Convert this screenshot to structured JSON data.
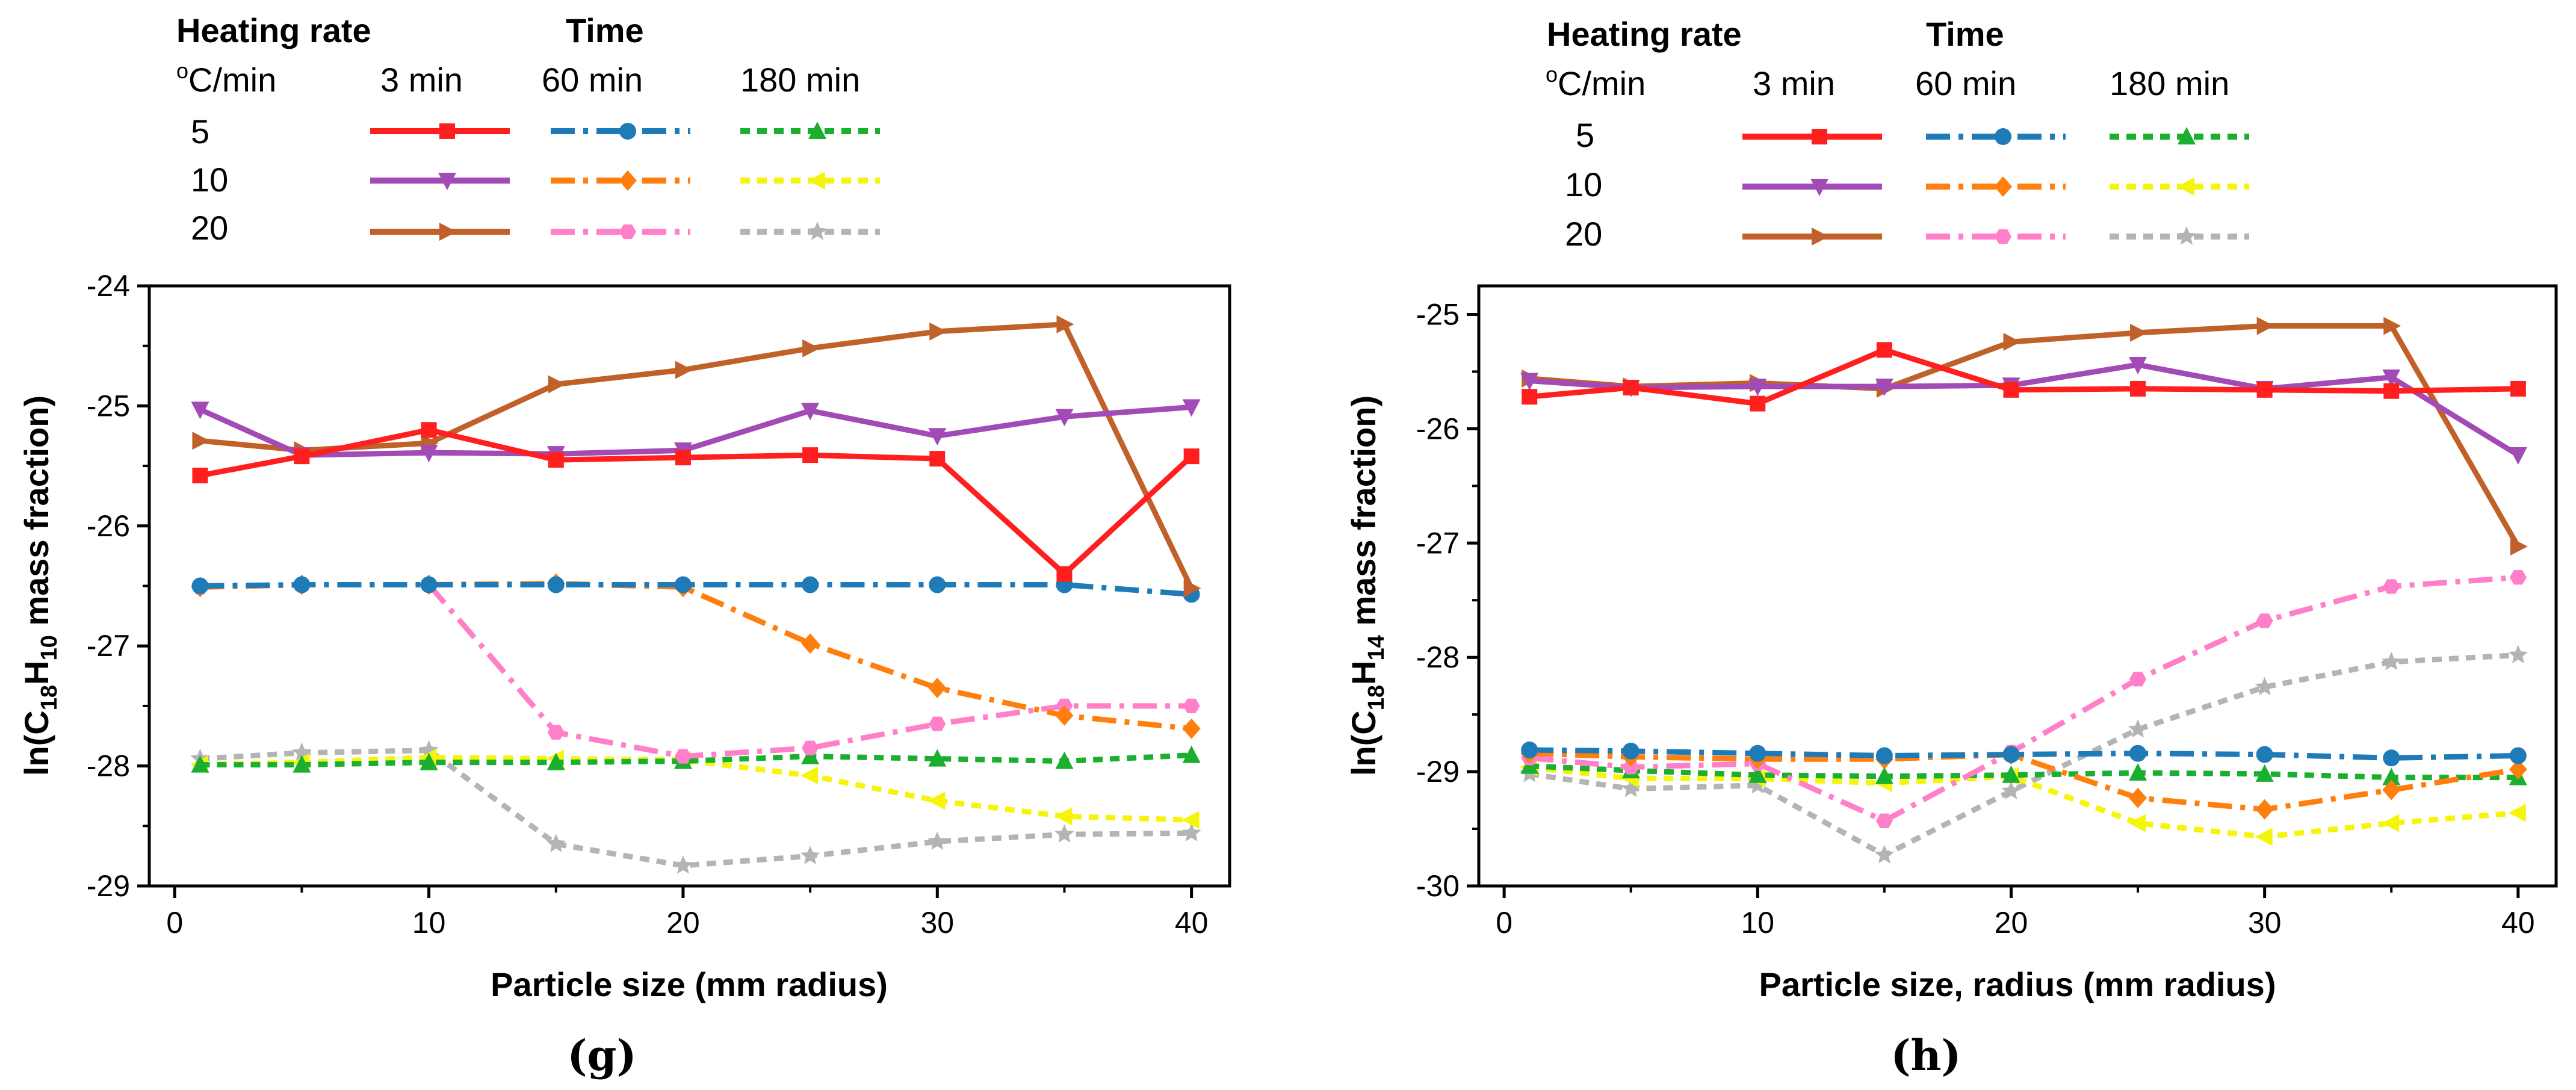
{
  "legend": {
    "heading_rate": "Heating rate",
    "heading_time": "Time",
    "unit": "°C/min",
    "unit_sup": "o",
    "unit_rest": "C/min",
    "times": [
      "3 min",
      "60 min",
      "180 min"
    ],
    "rates": [
      "5",
      "10",
      "20"
    ]
  },
  "chart_data": [
    {
      "type": "line",
      "caption": "(g)",
      "xlabel": "Particle size (mm radius)",
      "ylabel": "ln(C18H10 mass fraction)",
      "ylabel_parts": {
        "pre": "ln(C",
        "sub1": "18",
        "mid": "H",
        "sub2": "10",
        "post": " mass fraction)"
      },
      "xlim": [
        -1,
        41.5
      ],
      "ylim": [
        -29,
        -24
      ],
      "xticks": [
        0,
        10,
        20,
        30,
        40
      ],
      "yticks": [
        -29,
        -28,
        -27,
        -26,
        -25,
        -24
      ],
      "x": [
        1,
        5,
        10,
        15,
        20,
        25,
        30,
        35,
        40
      ],
      "series": [
        {
          "name": "5 °C/min, 3 min",
          "values": [
            -25.58,
            -25.42,
            -25.2,
            -25.45,
            -25.43,
            -25.41,
            -25.44,
            -26.4,
            -25.42
          ]
        },
        {
          "name": "10 °C/min, 3 min",
          "values": [
            -25.03,
            -25.41,
            -25.39,
            -25.4,
            -25.37,
            -25.04,
            -25.25,
            -25.09,
            -25.01
          ]
        },
        {
          "name": "20 °C/min, 3 min",
          "values": [
            -25.29,
            -25.37,
            -25.31,
            -24.82,
            -24.7,
            -24.52,
            -24.38,
            -24.32,
            -26.52
          ]
        },
        {
          "name": "5 °C/min, 60 min",
          "values": [
            -26.5,
            -26.49,
            -26.49,
            -26.49,
            -26.49,
            -26.49,
            -26.49,
            -26.49,
            -26.57
          ]
        },
        {
          "name": "10 °C/min, 60 min",
          "values": [
            -26.51,
            -26.49,
            -26.49,
            -26.48,
            -26.51,
            -26.98,
            -27.35,
            -27.58,
            -27.69
          ]
        },
        {
          "name": "20 °C/min, 60 min",
          "values": [
            -26.51,
            -26.49,
            -26.49,
            -27.72,
            -27.92,
            -27.85,
            -27.65,
            -27.5,
            -27.5
          ]
        },
        {
          "name": "5 °C/min, 180 min",
          "values": [
            -27.99,
            -27.99,
            -27.97,
            -27.97,
            -27.96,
            -27.92,
            -27.94,
            -27.96,
            -27.91
          ]
        },
        {
          "name": "10 °C/min, 180 min",
          "values": [
            -27.99,
            -27.97,
            -27.93,
            -27.94,
            -27.95,
            -28.08,
            -28.29,
            -28.42,
            -28.45
          ]
        },
        {
          "name": "20 °C/min, 180 min",
          "values": [
            -27.94,
            -27.89,
            -27.87,
            -28.65,
            -28.83,
            -28.75,
            -28.63,
            -28.57,
            -28.56
          ]
        }
      ]
    },
    {
      "type": "line",
      "caption": "(h)",
      "xlabel": "Particle size, radius (mm radius)",
      "ylabel": "ln(C18H14 mass fraction)",
      "ylabel_parts": {
        "pre": "ln(C",
        "sub1": "18",
        "mid": "H",
        "sub2": "14",
        "post": " mass fraction)"
      },
      "xlim": [
        -1,
        41.5
      ],
      "ylim": [
        -30,
        -24.75
      ],
      "xticks": [
        0,
        10,
        20,
        30,
        40
      ],
      "yticks": [
        -30,
        -29,
        -28,
        -27,
        -26,
        -25
      ],
      "x": [
        1,
        5,
        10,
        15,
        20,
        25,
        30,
        35,
        40
      ],
      "series": [
        {
          "name": "5 °C/min, 3 min",
          "values": [
            -25.72,
            -25.64,
            -25.78,
            -25.31,
            -25.66,
            -25.65,
            -25.66,
            -25.67,
            -25.65
          ]
        },
        {
          "name": "10 °C/min, 3 min",
          "values": [
            -25.58,
            -25.64,
            -25.63,
            -25.63,
            -25.62,
            -25.44,
            -25.65,
            -25.55,
            -26.23
          ]
        },
        {
          "name": "20 °C/min, 3 min",
          "values": [
            -25.56,
            -25.63,
            -25.6,
            -25.65,
            -25.24,
            -25.16,
            -25.1,
            -25.1,
            -27.03
          ]
        },
        {
          "name": "5 °C/min, 60 min",
          "values": [
            -28.81,
            -28.82,
            -28.84,
            -28.86,
            -28.85,
            -28.84,
            -28.85,
            -28.88,
            -28.86
          ]
        },
        {
          "name": "10 °C/min, 60 min",
          "values": [
            -28.84,
            -28.87,
            -28.89,
            -28.89,
            -28.85,
            -29.23,
            -29.33,
            -29.16,
            -28.98
          ]
        },
        {
          "name": "20 °C/min, 60 min",
          "values": [
            -28.88,
            -28.96,
            -28.93,
            -29.43,
            -28.83,
            -28.19,
            -27.68,
            -27.38,
            -27.3
          ]
        },
        {
          "name": "5 °C/min, 180 min",
          "values": [
            -28.95,
            -28.99,
            -29.03,
            -29.04,
            -29.03,
            -29.01,
            -29.02,
            -29.05,
            -29.05
          ]
        },
        {
          "name": "10 °C/min, 180 min",
          "values": [
            -28.96,
            -29.06,
            -29.06,
            -29.1,
            -29.04,
            -29.45,
            -29.57,
            -29.45,
            -29.36
          ]
        },
        {
          "name": "20 °C/min, 180 min",
          "values": [
            -29.02,
            -29.15,
            -29.12,
            -29.73,
            -29.17,
            -28.63,
            -28.26,
            -28.04,
            -27.98
          ]
        }
      ]
    }
  ],
  "series_styles": [
    {
      "color": "#ff1f1f",
      "dash": "",
      "marker": "square"
    },
    {
      "color": "#a24ab6",
      "dash": "",
      "marker": "tri-down"
    },
    {
      "color": "#c0612a",
      "dash": "",
      "marker": "tri-right"
    },
    {
      "color": "#1f7ab8",
      "dash": "dashdot",
      "marker": "circle"
    },
    {
      "color": "#ff7f0e",
      "dash": "dashdot",
      "marker": "diamond"
    },
    {
      "color": "#ff7fc9",
      "dash": "dashdot",
      "marker": "hexagon"
    },
    {
      "color": "#1aaf2e",
      "dash": "dash",
      "marker": "tri-up"
    },
    {
      "color": "#f5f50a",
      "dash": "dash",
      "marker": "tri-left"
    },
    {
      "color": "#b4b4b4",
      "dash": "dash",
      "marker": "star"
    }
  ]
}
